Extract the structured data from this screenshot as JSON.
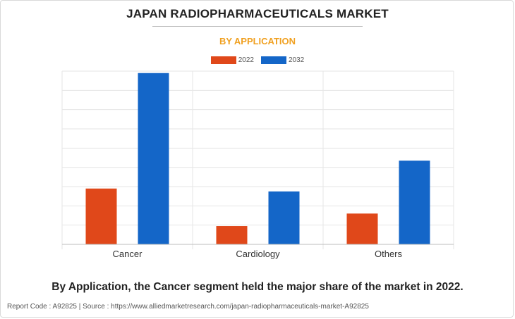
{
  "title": "JAPAN RADIOPHARMACEUTICALS MARKET",
  "subtitle": "BY APPLICATION",
  "caption": "By Application, the Cancer segment held the major share of the market in 2022.",
  "footer": {
    "report_code": "Report Code : A92825",
    "separator": "|",
    "source": "Source : https://www.alliedmarketresearch.com/japan-radiopharmaceuticals-market-A92825"
  },
  "colors": {
    "subtitle": "#f0a020",
    "series_2022": "#e0481a",
    "series_2032": "#1466c8",
    "grid": "#e6e6e6",
    "axis": "#bdbdbd"
  },
  "chart_data": {
    "type": "bar",
    "categories": [
      "Cancer",
      "Cardiology",
      "Others"
    ],
    "series": [
      {
        "name": "2022",
        "values": [
          29,
          9.5,
          16
        ]
      },
      {
        "name": "2032",
        "values": [
          89,
          27.5,
          43.5
        ]
      }
    ],
    "ylim": [
      0,
      90
    ],
    "grid": true,
    "y_tick_labels_shown": false,
    "legend_position": "top-center"
  }
}
